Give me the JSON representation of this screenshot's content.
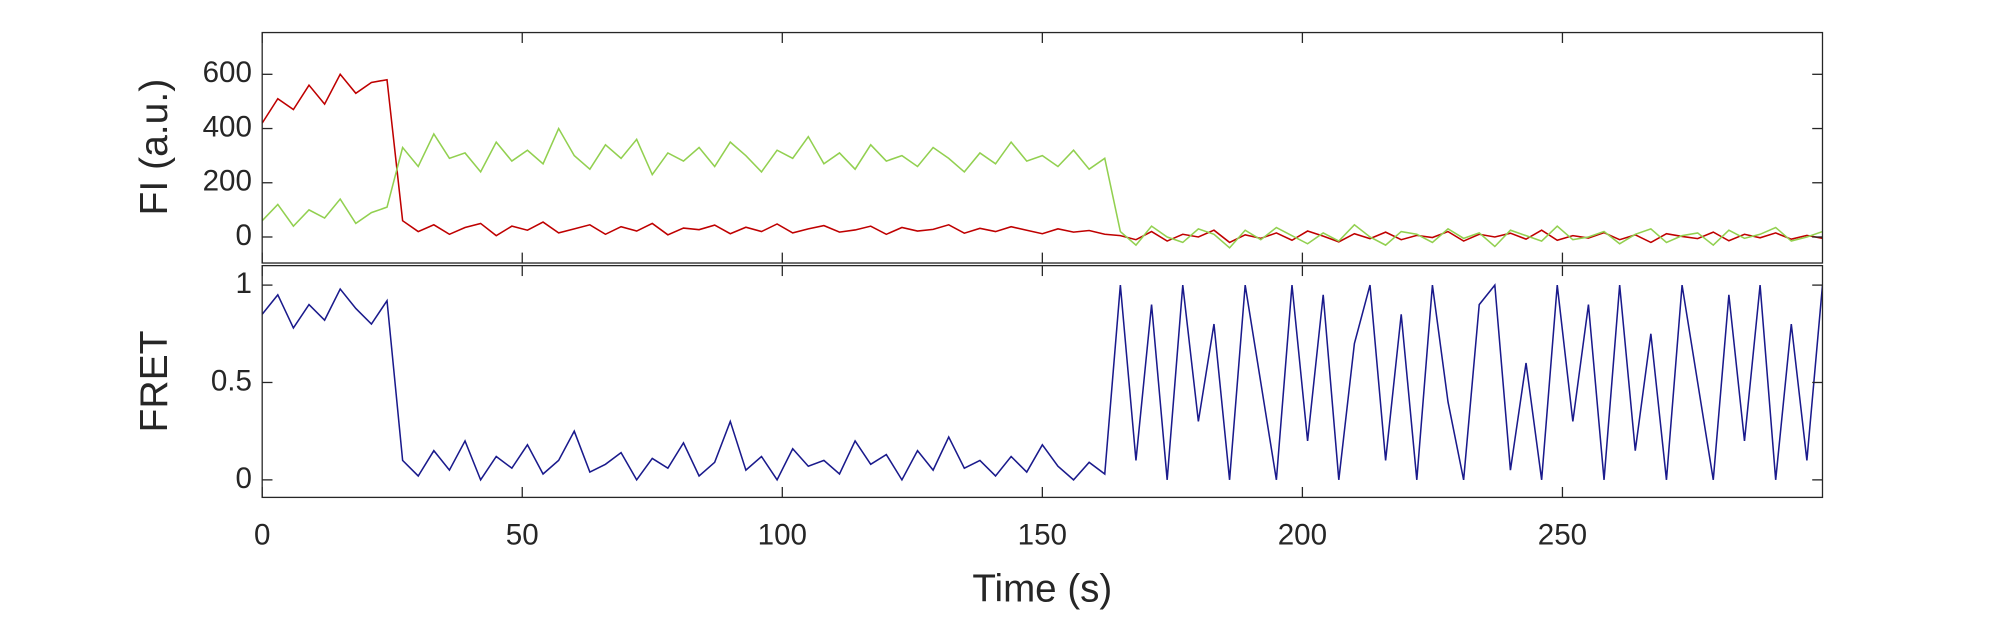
{
  "chart_data": [
    {
      "type": "line",
      "ylabel": "FI (a.u.)",
      "x": [
        0,
        3,
        6,
        9,
        12,
        15,
        18,
        21,
        24,
        27,
        30,
        33,
        36,
        39,
        42,
        45,
        48,
        51,
        54,
        57,
        60,
        63,
        66,
        69,
        72,
        75,
        78,
        81,
        84,
        87,
        90,
        93,
        96,
        99,
        102,
        105,
        108,
        111,
        114,
        117,
        120,
        123,
        126,
        129,
        132,
        135,
        138,
        141,
        144,
        147,
        150,
        153,
        156,
        159,
        162,
        165,
        168,
        171,
        174,
        177,
        180,
        183,
        186,
        189,
        192,
        195,
        198,
        201,
        204,
        207,
        210,
        213,
        216,
        219,
        222,
        225,
        228,
        231,
        234,
        237,
        240,
        243,
        246,
        249,
        252,
        255,
        258,
        261,
        264,
        267,
        270,
        273,
        276,
        279,
        282,
        285,
        288,
        291,
        294,
        297,
        300
      ],
      "series": [
        {
          "color": "#bf0000",
          "values": [
            420,
            510,
            470,
            560,
            490,
            600,
            530,
            570,
            580,
            60,
            20,
            45,
            10,
            35,
            50,
            5,
            40,
            25,
            55,
            15,
            30,
            45,
            10,
            38,
            22,
            50,
            8,
            33,
            27,
            44,
            12,
            36,
            20,
            48,
            15,
            30,
            42,
            18,
            26,
            40,
            10,
            35,
            22,
            28,
            45,
            14,
            32,
            20,
            38,
            25,
            12,
            30,
            18,
            24,
            10,
            5,
            -10,
            20,
            -15,
            10,
            0,
            25,
            -20,
            8,
            -5,
            15,
            -12,
            22,
            3,
            -18,
            12,
            -6,
            18,
            -10,
            6,
            -2,
            20,
            -15,
            10,
            0,
            14,
            -8,
            25,
            -12,
            5,
            -4,
            16,
            -10,
            8,
            -20,
            12,
            2,
            -6,
            18,
            -14,
            10,
            -3,
            15,
            -8,
            6,
            -5
          ]
        },
        {
          "color": "#92d050",
          "values": [
            60,
            120,
            40,
            100,
            70,
            140,
            50,
            90,
            110,
            330,
            260,
            380,
            290,
            310,
            240,
            350,
            280,
            320,
            270,
            400,
            300,
            250,
            340,
            290,
            360,
            230,
            310,
            280,
            330,
            260,
            350,
            300,
            240,
            320,
            290,
            370,
            270,
            310,
            250,
            340,
            280,
            300,
            260,
            330,
            290,
            240,
            310,
            270,
            350,
            280,
            300,
            260,
            320,
            250,
            290,
            20,
            -30,
            40,
            0,
            -20,
            30,
            10,
            -40,
            25,
            -10,
            35,
            5,
            -25,
            15,
            -15,
            45,
            0,
            -30,
            20,
            10,
            -20,
            30,
            -5,
            15,
            -35,
            25,
            5,
            -15,
            40,
            -10,
            0,
            20,
            -25,
            10,
            30,
            -20,
            5,
            15,
            -30,
            25,
            -5,
            10,
            35,
            -15,
            0,
            20
          ]
        }
      ],
      "xlim": [
        0,
        300
      ],
      "ylim": [
        -96,
        754
      ],
      "yticks": [
        0,
        200,
        400,
        600
      ]
    },
    {
      "type": "line",
      "ylabel": "FRET",
      "xlabel": "Time (s)",
      "x": [
        0,
        3,
        6,
        9,
        12,
        15,
        18,
        21,
        24,
        27,
        30,
        33,
        36,
        39,
        42,
        45,
        48,
        51,
        54,
        57,
        60,
        63,
        66,
        69,
        72,
        75,
        78,
        81,
        84,
        87,
        90,
        93,
        96,
        99,
        102,
        105,
        108,
        111,
        114,
        117,
        120,
        123,
        126,
        129,
        132,
        135,
        138,
        141,
        144,
        147,
        150,
        153,
        156,
        159,
        162,
        165,
        168,
        171,
        174,
        177,
        180,
        183,
        186,
        189,
        192,
        195,
        198,
        201,
        204,
        207,
        210,
        213,
        216,
        219,
        222,
        225,
        228,
        231,
        234,
        237,
        240,
        243,
        246,
        249,
        252,
        255,
        258,
        261,
        264,
        267,
        270,
        273,
        276,
        279,
        282,
        285,
        288,
        291,
        294,
        297,
        300
      ],
      "series": [
        {
          "color": "#1a1a8c",
          "values": [
            0.85,
            0.95,
            0.78,
            0.9,
            0.82,
            0.98,
            0.88,
            0.8,
            0.92,
            0.1,
            0.02,
            0.15,
            0.05,
            0.2,
            0.0,
            0.12,
            0.06,
            0.18,
            0.03,
            0.1,
            0.25,
            0.04,
            0.08,
            0.14,
            0.0,
            0.11,
            0.06,
            0.19,
            0.02,
            0.09,
            0.3,
            0.05,
            0.12,
            0.0,
            0.16,
            0.07,
            0.1,
            0.03,
            0.2,
            0.08,
            0.13,
            0.0,
            0.15,
            0.05,
            0.22,
            0.06,
            0.1,
            0.02,
            0.12,
            0.04,
            0.18,
            0.07,
            0.0,
            0.09,
            0.03,
            1,
            0.1,
            0.9,
            0,
            1,
            0.3,
            0.8,
            0,
            1,
            0.5,
            0,
            1,
            0.2,
            0.95,
            0,
            0.7,
            1,
            0.1,
            0.85,
            0,
            1,
            0.4,
            0,
            0.9,
            1,
            0.05,
            0.6,
            0,
            1,
            0.3,
            0.9,
            0,
            1,
            0.15,
            0.75,
            0,
            1,
            0.5,
            0,
            0.95,
            0.2,
            1,
            0,
            0.8,
            0.1,
            1
          ]
        }
      ],
      "xlim": [
        0,
        300
      ],
      "ylim": [
        -0.09,
        1.1
      ],
      "yticks": [
        0,
        0.5,
        1
      ],
      "xticks": [
        0,
        50,
        100,
        150,
        200,
        250
      ]
    }
  ]
}
